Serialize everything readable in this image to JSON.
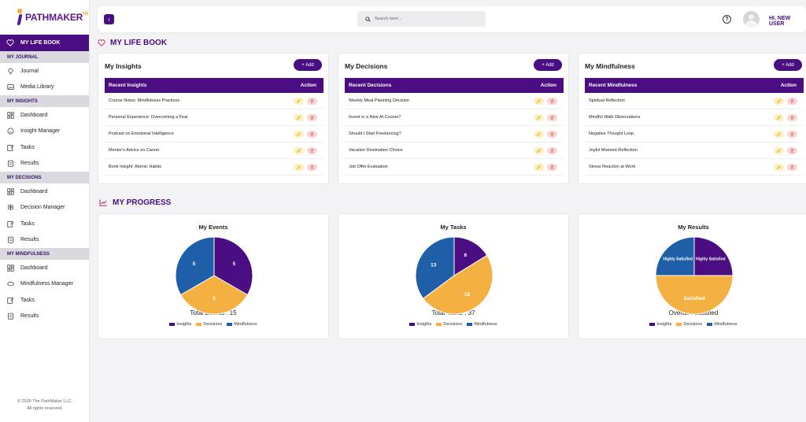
{
  "brand": {
    "logo_text": "PATHMAKER",
    "tm": "TM"
  },
  "sidebar": {
    "active": "MY LIFE BOOK",
    "sections": [
      {
        "title": "MY JOURNAL",
        "items": [
          "Journal",
          "Media Library"
        ]
      },
      {
        "title": "MY INSIGHTS",
        "items": [
          "Dashboard",
          "Insight Manager",
          "Tasks",
          "Results"
        ]
      },
      {
        "title": "MY DECISIONS",
        "items": [
          "Dashboard",
          "Decision Manager",
          "Tasks",
          "Results"
        ]
      },
      {
        "title": "MY MINDFULNESS",
        "items": [
          "Dashboard",
          "Mindfulness Manager",
          "Tasks",
          "Results"
        ]
      }
    ],
    "copyright_line1": "© 2025 The PathMaker LLC.",
    "copyright_line2": "All rights reserved."
  },
  "topbar": {
    "back": "‹",
    "search_placeholder": "Search here...",
    "help": "?",
    "user": "HI, NEW USER"
  },
  "lifebook": {
    "title": "MY LIFE BOOK",
    "cards": [
      {
        "title": "My Insights",
        "add": "+ Add",
        "col1": "Recent Insights",
        "col2": "Action",
        "rows": [
          "Course Notes: Mindfulness Practices",
          "Personal Experience: Overcoming a Fear",
          "Podcast on Emotional Intelligence",
          "Mentor's Advice on Career",
          "Book Insight: Atomic Habits"
        ]
      },
      {
        "title": "My Decisions",
        "add": "+ Add",
        "col1": "Recent Decisions",
        "col2": "Action",
        "rows": [
          "Weekly Meal Planning Decision",
          "Invest in a New AI Course?",
          "Should I Start Freelancing?",
          "Vacation Destination Choice",
          "Job Offer Evaluation"
        ]
      },
      {
        "title": "My Mindfulness",
        "add": "+ Add",
        "col1": "Recent Mindfulness",
        "col2": "Action",
        "rows": [
          "Spiritual Reflection",
          "Mindful Walk Observations",
          "Negative Thought Loop",
          "Joyful Moment Reflection",
          "Stress Reaction at Work"
        ]
      }
    ]
  },
  "progress": {
    "title": "MY PROGRESS",
    "colors": {
      "Insights": "#4a0e82",
      "Decisions": "#f5b042",
      "Mindfulness": "#1f5fa8"
    },
    "legend": [
      "Insights",
      "Decisions",
      "Mindfulness"
    ]
  },
  "chart_data": [
    {
      "type": "pie",
      "title": "My Events",
      "categories": [
        "Insights",
        "Decisions",
        "Mindfulness"
      ],
      "values": [
        5,
        5,
        5
      ],
      "labels": [
        "5",
        "5",
        "5"
      ],
      "total_text": "Total Events : 15"
    },
    {
      "type": "pie",
      "title": "My Tasks",
      "categories": [
        "Insights",
        "Decisions",
        "Mindfulness"
      ],
      "values": [
        6,
        18,
        13
      ],
      "labels": [
        "6",
        "18",
        "13"
      ],
      "total_text": "Total Tasks : 37"
    },
    {
      "type": "pie",
      "title": "My Results",
      "categories": [
        "Insights",
        "Decisions",
        "Mindfulness"
      ],
      "values": [
        1,
        2,
        1
      ],
      "labels": [
        "Highly Satisfied",
        "Satisfied",
        "Highly Satisfied"
      ],
      "total_text": "Overall : Satisfied"
    }
  ]
}
